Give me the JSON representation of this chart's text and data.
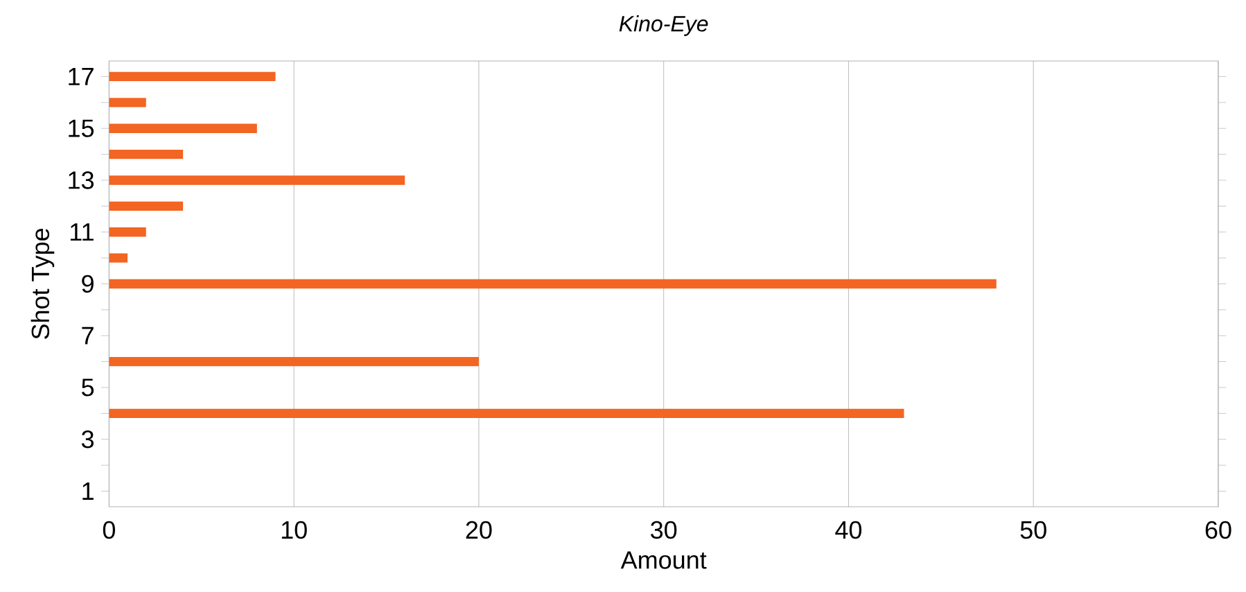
{
  "chart_data": {
    "type": "bar",
    "orientation": "horizontal",
    "title": "*Kino-Eye*",
    "xlabel": "Amount",
    "ylabel": "Shot Type",
    "categories": [
      "17",
      null,
      "15",
      null,
      "13",
      null,
      "11",
      null,
      "9",
      null,
      "7",
      null,
      "5",
      null,
      "3",
      null,
      "1"
    ],
    "values": [
      9,
      2,
      8,
      4,
      16,
      4,
      2,
      1,
      48,
      null,
      null,
      20,
      null,
      43,
      null,
      null,
      null
    ],
    "color": "#f26522",
    "xlim": [
      0,
      60
    ],
    "xticks": [
      0,
      10,
      20,
      30,
      40,
      50,
      60
    ],
    "grid": "x"
  }
}
